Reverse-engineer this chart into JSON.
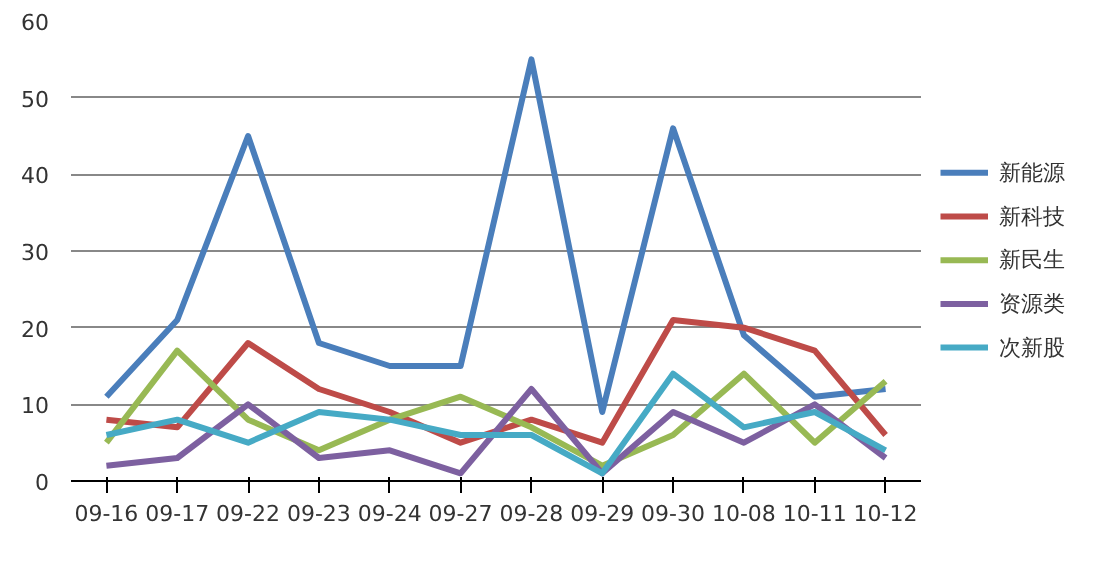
{
  "chart_data": {
    "type": "line",
    "categories": [
      "09-16",
      "09-17",
      "09-22",
      "09-23",
      "09-24",
      "09-27",
      "09-28",
      "09-29",
      "09-30",
      "10-08",
      "10-11",
      "10-12"
    ],
    "ylim": [
      0,
      60
    ],
    "yticks": [
      0,
      10,
      20,
      30,
      40,
      50,
      60
    ],
    "grid": "y",
    "legend": "right",
    "marker": "none",
    "line_style": "solid",
    "series": [
      {
        "name": "新能源",
        "color": "#4a7ebb",
        "values": [
          11,
          21,
          45,
          18,
          15,
          15,
          55,
          9,
          46,
          19,
          11,
          12
        ]
      },
      {
        "name": "新科技",
        "color": "#be4b48",
        "values": [
          8,
          7,
          18,
          12,
          9,
          5,
          8,
          5,
          21,
          20,
          17,
          6
        ]
      },
      {
        "name": "新民生",
        "color": "#98b954",
        "values": [
          5,
          17,
          8,
          4,
          8,
          11,
          7,
          2,
          6,
          14,
          5,
          13
        ]
      },
      {
        "name": "资源类",
        "color": "#7d60a0",
        "values": [
          2,
          3,
          10,
          3,
          4,
          1,
          12,
          1,
          9,
          5,
          10,
          3
        ]
      },
      {
        "name": "次新股",
        "color": "#46aac5",
        "values": [
          6,
          8,
          5,
          9,
          8,
          6,
          6,
          1,
          14,
          7,
          9,
          4
        ]
      }
    ]
  }
}
